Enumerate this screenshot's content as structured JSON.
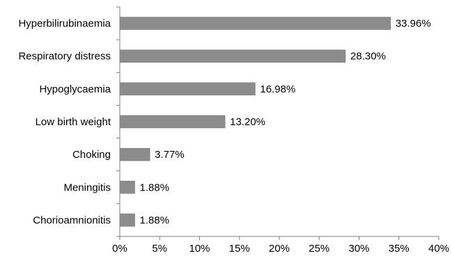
{
  "chart_data": {
    "type": "bar",
    "orientation": "horizontal",
    "title": "",
    "xlabel": "",
    "ylabel": "",
    "categories": [
      "Hyperbilirubinaemia",
      "Respiratory distress",
      "Hypoglycaemia",
      "Low birth weight",
      "Choking",
      "Meningitis",
      "Chorioamnionitis"
    ],
    "values": [
      33.96,
      28.3,
      16.98,
      13.2,
      3.77,
      1.88,
      1.88
    ],
    "data_labels": [
      "33.96%",
      "28.30%",
      "16.98%",
      "13.20%",
      "3.77%",
      "1.88%",
      "1.88%"
    ],
    "xlim": [
      0,
      40
    ],
    "x_ticks": [
      0,
      5,
      10,
      15,
      20,
      25,
      30,
      35,
      40
    ],
    "x_tick_labels": [
      "0%",
      "5%",
      "10%",
      "15%",
      "20%",
      "25%",
      "30%",
      "35%",
      "40%"
    ],
    "grid": false,
    "legend": "none",
    "bar_color": "#8c8c8c",
    "bar_edge_color": "#6e6e6e",
    "axis_color": "#7f7f7f"
  }
}
